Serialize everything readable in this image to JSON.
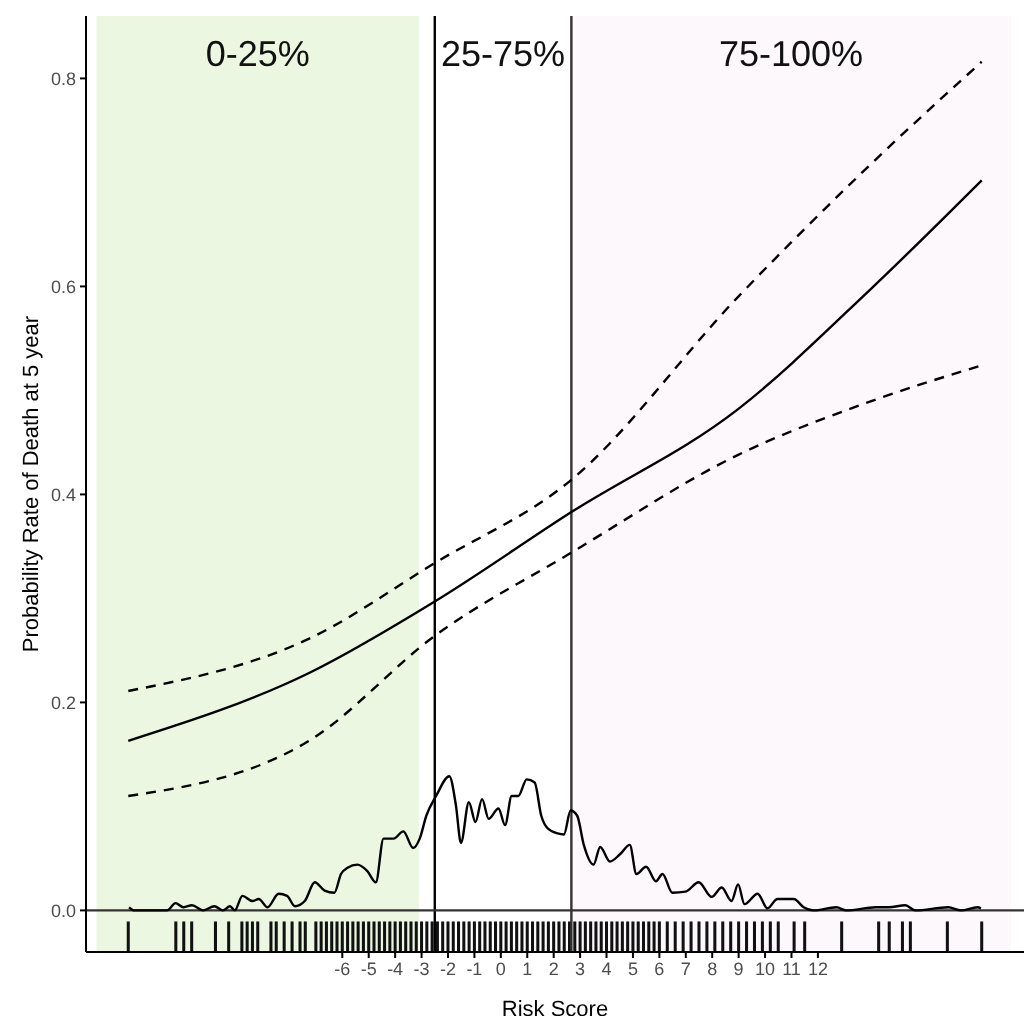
{
  "chart_data": {
    "type": "line",
    "xlabel": "Risk Score",
    "ylabel": "Probability Rate of Death at 5 year",
    "xlim": [
      -15.7,
      19.8
    ],
    "xticks": [
      -6,
      -5,
      -4,
      -3,
      -2,
      -1,
      0,
      1,
      2,
      3,
      4,
      5,
      6,
      7,
      8,
      9,
      10,
      11,
      12
    ],
    "ylim": [
      -0.04,
      0.86
    ],
    "yticks": [
      {
        "value": 0,
        "label": "0.0"
      },
      {
        "value": 0.2,
        "label": "0.2"
      },
      {
        "value": 0.4,
        "label": "0.4"
      },
      {
        "value": 0.6,
        "label": "0.6"
      },
      {
        "value": 0.8,
        "label": "0.8"
      }
    ],
    "grid": false,
    "legend": false,
    "annotations": [
      "25-75%"
    ],
    "bands": [
      {
        "axis": "x",
        "from": -15.3,
        "to": -3.1,
        "label": "0-25%",
        "color": "#ebf7e1"
      },
      {
        "axis": "x",
        "from": 2.67,
        "to": 19.3,
        "label": "75-100%",
        "color": "#fcf8fc"
      }
    ],
    "ref_lines": [
      {
        "axis": "x",
        "value": -2.5,
        "color": "#000000"
      },
      {
        "axis": "x",
        "value": 2.67,
        "color": "#333333"
      },
      {
        "axis": "y",
        "value": 0,
        "color": "#333333"
      }
    ],
    "series": [
      {
        "color": "#000000",
        "line_style": "solid",
        "marker": "none",
        "x": [
          -14.1,
          -7.2,
          -2.5,
          2.67,
          8.98,
          13.94,
          18.2
        ],
        "values": [
          0.163,
          0.229,
          0.297,
          0.383,
          0.482,
          0.596,
          0.702
        ]
      },
      {
        "color": "#000000",
        "line_style": "dashed",
        "marker": "none",
        "x": [
          -14.1,
          -7.2,
          -2.5,
          2.67,
          8.98,
          13.94,
          18.2
        ],
        "values": [
          0.211,
          0.262,
          0.334,
          0.414,
          0.59,
          0.716,
          0.816
        ]
      },
      {
        "color": "#000000",
        "line_style": "dashed",
        "marker": "none",
        "x": [
          -14.1,
          -7.2,
          -2.5,
          2.67,
          8.98,
          13.94,
          18.2
        ],
        "values": [
          0.11,
          0.164,
          0.264,
          0.344,
          0.438,
          0.489,
          0.524
        ]
      },
      {
        "color": "#000000",
        "line_style": "solid",
        "marker": "none",
        "x": [
          -14.07,
          -13.87,
          -12.63,
          -12.31,
          -12.01,
          -11.69,
          -11.27,
          -10.84,
          -10.52,
          -10.25,
          -10.07,
          -9.78,
          -9.4,
          -9.16,
          -8.83,
          -8.41,
          -8.09,
          -7.79,
          -7.42,
          -7.04,
          -6.67,
          -6.3,
          -6.05,
          -5.8,
          -5.43,
          -5.06,
          -4.73,
          -4.44,
          -4.06,
          -3.69,
          -3.32,
          -3.07,
          -2.82,
          -2.45,
          -1.95,
          -1.7,
          -1.51,
          -1.21,
          -0.96,
          -0.71,
          -0.46,
          -0.09,
          0.16,
          0.41,
          0.66,
          0.98,
          1.28,
          1.53,
          1.77,
          2.15,
          2.39,
          2.64,
          2.89,
          3.14,
          3.51,
          3.76,
          4.13,
          4.51,
          4.88,
          5.13,
          5.5,
          5.87,
          6.12,
          6.49,
          6.99,
          7.49,
          7.98,
          8.36,
          8.73,
          8.98,
          9.22,
          9.72,
          10.09,
          10.47,
          11.09,
          11.46,
          11.83,
          12.7,
          13.07,
          14.19,
          14.69,
          15.31,
          15.68,
          16.93,
          17.42,
          18.04,
          18.17
        ],
        "values": [
          0.003,
          0,
          0,
          0.007,
          0.003,
          0.005,
          0,
          0.004,
          0,
          0.004,
          0,
          0.014,
          0.009,
          0.011,
          0.003,
          0.016,
          0.014,
          0.004,
          0.009,
          0.027,
          0.019,
          0.017,
          0.035,
          0.041,
          0.044,
          0.038,
          0.027,
          0.069,
          0.069,
          0.076,
          0.06,
          0.069,
          0.091,
          0.11,
          0.129,
          0.101,
          0.065,
          0.104,
          0.085,
          0.107,
          0.088,
          0.098,
          0.082,
          0.11,
          0.11,
          0.126,
          0.123,
          0.091,
          0.079,
          0.074,
          0.073,
          0.096,
          0.091,
          0.063,
          0.044,
          0.061,
          0.047,
          0.054,
          0.063,
          0.035,
          0.042,
          0.028,
          0.035,
          0.017,
          0.018,
          0.027,
          0.013,
          0.022,
          0.009,
          0.025,
          0.006,
          0.016,
          0.002,
          0.011,
          0.011,
          0.003,
          0,
          0.003,
          0,
          0.003,
          0.003,
          0.005,
          0,
          0.003,
          0,
          0.003,
          0.002
        ]
      },
      {
        "type": "bar",
        "color": "#111111",
        "x": [
          -14.1,
          -12.3,
          -12.0,
          -11.7,
          -10.8,
          -10.3,
          -9.8,
          -9.6,
          -9.4,
          -9.2,
          -8.7,
          -8.5,
          -8.2,
          -7.9,
          -7.6,
          -7.4,
          -7.0,
          -6.8,
          -6.6,
          -6.4,
          -6.2,
          -6.0,
          -5.8,
          -5.6,
          -5.4,
          -5.2,
          -5.0,
          -4.8,
          -4.6,
          -4.4,
          -4.2,
          -4.0,
          -3.8,
          -3.6,
          -3.4,
          -3.2,
          -3.0,
          -2.8,
          -2.6,
          -2.4,
          -2.2,
          -2.0,
          -1.8,
          -1.6,
          -1.4,
          -1.2,
          -1.0,
          -0.8,
          -0.6,
          -0.4,
          -0.2,
          0,
          0.2,
          0.4,
          0.6,
          0.8,
          1.0,
          1.2,
          1.4,
          1.6,
          1.8,
          2.0,
          2.2,
          2.4,
          2.6,
          2.8,
          3.0,
          3.2,
          3.4,
          3.6,
          3.8,
          4.0,
          4.2,
          4.4,
          4.6,
          4.8,
          5.0,
          5.2,
          5.4,
          5.6,
          5.8,
          6.0,
          6.3,
          6.6,
          6.9,
          7.2,
          7.5,
          7.8,
          8.1,
          8.4,
          8.7,
          9.0,
          9.3,
          9.6,
          9.9,
          10.2,
          10.5,
          11.1,
          11.5,
          12.9,
          14.3,
          14.7,
          15.2,
          15.5,
          16.9,
          18.2
        ],
        "base": [
          -0.012,
          -0.012,
          -0.012,
          -0.012,
          -0.012,
          -0.012,
          -0.012,
          -0.012,
          -0.012,
          -0.012,
          -0.012,
          -0.012,
          -0.012,
          -0.012,
          -0.012,
          -0.012,
          -0.012,
          -0.012,
          -0.012,
          -0.012,
          -0.012,
          -0.012,
          -0.012,
          -0.012,
          -0.012,
          -0.012,
          -0.012,
          -0.012,
          -0.012,
          -0.012,
          -0.012,
          -0.012,
          -0.012,
          -0.012,
          -0.012,
          -0.012,
          -0.012,
          -0.012,
          -0.012,
          -0.012,
          -0.012,
          -0.012,
          -0.012,
          -0.012,
          -0.012,
          -0.012,
          -0.012,
          -0.012,
          -0.012,
          -0.012,
          -0.012,
          -0.012,
          -0.012,
          -0.012,
          -0.012,
          -0.012,
          -0.012,
          -0.012,
          -0.012,
          -0.012,
          -0.012,
          -0.012,
          -0.012,
          -0.012,
          -0.012,
          -0.012,
          -0.012,
          -0.012,
          -0.012,
          -0.012,
          -0.012,
          -0.012,
          -0.012,
          -0.012,
          -0.012,
          -0.012,
          -0.012,
          -0.012,
          -0.012,
          -0.012,
          -0.012,
          -0.012,
          -0.012,
          -0.012,
          -0.012,
          -0.012,
          -0.012,
          -0.012,
          -0.012,
          -0.012,
          -0.012,
          -0.012,
          -0.012,
          -0.012,
          -0.012,
          -0.012,
          -0.012,
          -0.012,
          -0.012,
          -0.012,
          -0.012,
          -0.012,
          -0.012,
          -0.012,
          -0.012,
          -0.012
        ],
        "values": [
          -0.026,
          -0.026,
          -0.026,
          -0.026,
          -0.026,
          -0.026,
          -0.026,
          -0.026,
          -0.026,
          -0.026,
          -0.026,
          -0.026,
          -0.026,
          -0.026,
          -0.026,
          -0.026,
          -0.026,
          -0.026,
          -0.026,
          -0.026,
          -0.026,
          -0.026,
          -0.026,
          -0.026,
          -0.026,
          -0.026,
          -0.026,
          -0.026,
          -0.026,
          -0.026,
          -0.026,
          -0.026,
          -0.026,
          -0.026,
          -0.026,
          -0.026,
          -0.026,
          -0.026,
          -0.026,
          -0.026,
          -0.026,
          -0.026,
          -0.026,
          -0.026,
          -0.026,
          -0.026,
          -0.026,
          -0.026,
          -0.026,
          -0.026,
          -0.026,
          -0.026,
          -0.026,
          -0.026,
          -0.026,
          -0.026,
          -0.026,
          -0.026,
          -0.026,
          -0.026,
          -0.026,
          -0.026,
          -0.026,
          -0.026,
          -0.026,
          -0.026,
          -0.026,
          -0.026,
          -0.026,
          -0.026,
          -0.026,
          -0.026,
          -0.026,
          -0.026,
          -0.026,
          -0.026,
          -0.026,
          -0.026,
          -0.026,
          -0.026,
          -0.026,
          -0.026,
          -0.026,
          -0.026,
          -0.026,
          -0.026,
          -0.026,
          -0.026,
          -0.026,
          -0.026,
          -0.026,
          -0.026,
          -0.026,
          -0.026,
          -0.026,
          -0.026,
          -0.026,
          -0.026,
          -0.026,
          -0.026,
          -0.026,
          -0.026,
          -0.026,
          -0.026,
          -0.026,
          -0.026
        ]
      }
    ]
  }
}
